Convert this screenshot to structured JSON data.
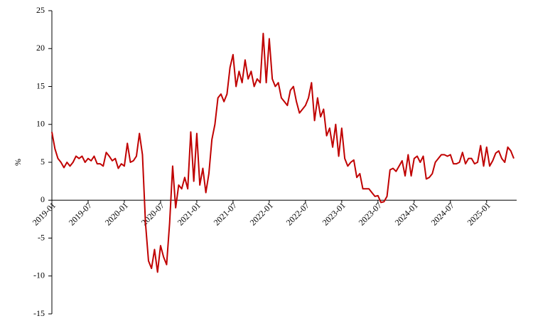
{
  "chart_data": {
    "type": "line",
    "y_label": "%",
    "categories": [
      "2019-01",
      null,
      null,
      null,
      null,
      null,
      null,
      null,
      null,
      null,
      null,
      null,
      "2019-07",
      null,
      null,
      null,
      null,
      null,
      null,
      null,
      null,
      null,
      null,
      null,
      "2020-01",
      null,
      null,
      null,
      null,
      null,
      null,
      null,
      null,
      null,
      null,
      null,
      "2020-07",
      null,
      null,
      null,
      null,
      null,
      null,
      null,
      null,
      null,
      null,
      null,
      "2021-01",
      null,
      null,
      null,
      null,
      null,
      null,
      null,
      null,
      null,
      null,
      null,
      "2021-07",
      null,
      null,
      null,
      null,
      null,
      null,
      null,
      null,
      null,
      null,
      null,
      "2022-01",
      null,
      null,
      null,
      null,
      null,
      null,
      null,
      null,
      null,
      null,
      null,
      "2022-07",
      null,
      null,
      null,
      null,
      null,
      null,
      null,
      null,
      null,
      null,
      null,
      "2023-01",
      null,
      null,
      null,
      null,
      null,
      null,
      null,
      null,
      null,
      null,
      null,
      "2023-07",
      null,
      null,
      null,
      null,
      null,
      null,
      null,
      null,
      null,
      null,
      null,
      "2024-01",
      null,
      null,
      null,
      null,
      null,
      null,
      null,
      null,
      null,
      null,
      null,
      "2024-07",
      null,
      null,
      null,
      null,
      null,
      null,
      null,
      null,
      null,
      null,
      null,
      "2025-01",
      null,
      null,
      null,
      null,
      null,
      null,
      null,
      null,
      null
    ],
    "series": [
      {
        "color": "#c00000",
        "values": [
          9,
          6.8,
          5.5,
          5,
          4.3,
          5,
          4.5,
          5,
          5.8,
          5.5,
          5.8,
          5,
          5.5,
          5.2,
          5.8,
          4.8,
          4.8,
          4.5,
          6.3,
          5.8,
          5.2,
          5.5,
          4.2,
          4.8,
          4.5,
          7.5,
          5,
          5.2,
          5.8,
          8.8,
          6,
          -3,
          -8,
          -9,
          -6.5,
          -9.5,
          -6,
          -7.5,
          -8.5,
          -3,
          4.5,
          -1,
          2,
          1.5,
          3,
          1.5,
          9,
          2.5,
          8.8,
          2,
          4.2,
          1,
          3.5,
          8,
          10,
          13.5,
          14,
          13,
          14,
          17.5,
          19.2,
          15,
          17,
          15.5,
          18.5,
          16,
          17,
          15,
          16,
          15.5,
          22,
          15.5,
          21.3,
          16,
          15,
          15.5,
          13.5,
          13,
          12.5,
          14.5,
          15,
          13,
          11.5,
          12,
          12.5,
          13.5,
          15.5,
          10.5,
          13.5,
          11,
          12,
          8.5,
          9.5,
          7,
          10,
          5.8,
          9.5,
          5.5,
          4.5,
          5,
          5.3,
          3,
          3.5,
          1.5,
          1.5,
          1.5,
          1,
          0.5,
          0.6,
          -0.3,
          -0.2,
          0.5,
          4,
          4.2,
          3.8,
          4.5,
          5.2,
          3.2,
          6,
          3.2,
          5.5,
          5.8,
          5,
          5.8,
          2.8,
          3,
          3.5,
          5,
          5.5,
          6,
          6,
          5.8,
          6,
          4.8,
          4.8,
          5,
          6.3,
          4.8,
          5.5,
          5.5,
          4.8,
          5,
          7.2,
          4.5,
          7,
          4.5,
          5.2,
          6.2,
          6.5,
          5.5,
          5,
          7,
          6.5,
          5.5
        ]
      }
    ],
    "ylim": [
      -15,
      25
    ],
    "yticks": [
      -15,
      -10,
      -5,
      0,
      5,
      10,
      15,
      20,
      25
    ]
  }
}
